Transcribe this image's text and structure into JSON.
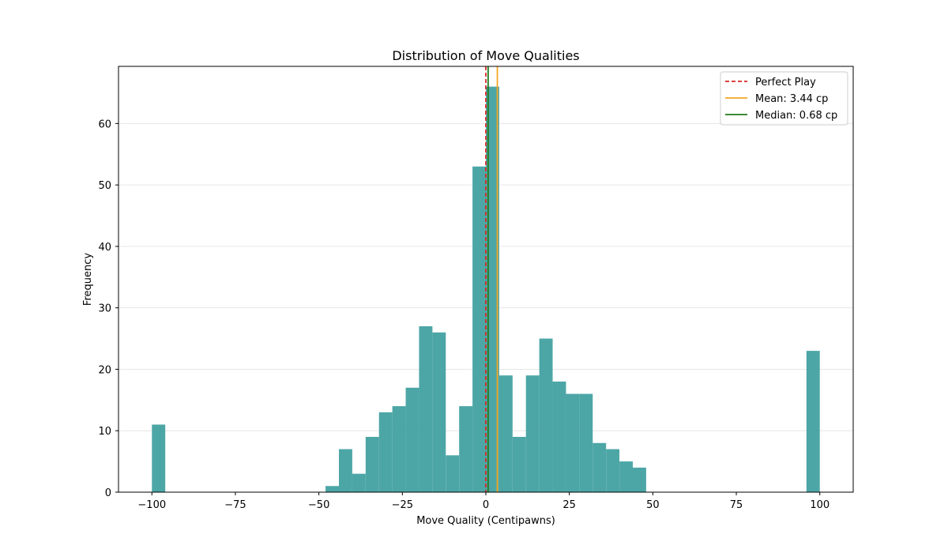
{
  "chart_data": {
    "type": "bar",
    "title": "Distribution of Move Qualities",
    "xlabel": "Move Quality (Centipawns)",
    "ylabel": "Frequency",
    "xlim": [
      -110,
      110
    ],
    "ylim": [
      0,
      69.3
    ],
    "xticks": [
      -100,
      -75,
      -50,
      -25,
      0,
      25,
      50,
      75,
      100
    ],
    "xtick_labels": [
      "−100",
      "−75",
      "−50",
      "−25",
      "0",
      "25",
      "50",
      "75",
      "100"
    ],
    "yticks": [
      0,
      10,
      20,
      30,
      40,
      50,
      60
    ],
    "ytick_labels": [
      "0",
      "10",
      "20",
      "30",
      "40",
      "50",
      "60"
    ],
    "grid": "y-axis, light",
    "bar_color": "#4da6a6",
    "bins": [
      {
        "x0": -100,
        "x1": -96,
        "count": 11
      },
      {
        "x0": -48,
        "x1": -44,
        "count": 1
      },
      {
        "x0": -44,
        "x1": -40,
        "count": 7
      },
      {
        "x0": -40,
        "x1": -36,
        "count": 3
      },
      {
        "x0": -36,
        "x1": -32,
        "count": 9
      },
      {
        "x0": -32,
        "x1": -28,
        "count": 13
      },
      {
        "x0": -28,
        "x1": -24,
        "count": 14
      },
      {
        "x0": -24,
        "x1": -20,
        "count": 17
      },
      {
        "x0": -20,
        "x1": -16,
        "count": 27
      },
      {
        "x0": -16,
        "x1": -12,
        "count": 26
      },
      {
        "x0": -12,
        "x1": -8,
        "count": 6
      },
      {
        "x0": -8,
        "x1": -4,
        "count": 14
      },
      {
        "x0": -4,
        "x1": 0,
        "count": 53
      },
      {
        "x0": 0,
        "x1": 4,
        "count": 66
      },
      {
        "x0": 4,
        "x1": 8,
        "count": 19
      },
      {
        "x0": 8,
        "x1": 12,
        "count": 9
      },
      {
        "x0": 12,
        "x1": 16,
        "count": 19
      },
      {
        "x0": 16,
        "x1": 20,
        "count": 25
      },
      {
        "x0": 20,
        "x1": 24,
        "count": 18
      },
      {
        "x0": 24,
        "x1": 28,
        "count": 16
      },
      {
        "x0": 28,
        "x1": 32,
        "count": 16
      },
      {
        "x0": 32,
        "x1": 36,
        "count": 8
      },
      {
        "x0": 36,
        "x1": 40,
        "count": 7
      },
      {
        "x0": 40,
        "x1": 44,
        "count": 5
      },
      {
        "x0": 44,
        "x1": 48,
        "count": 4
      },
      {
        "x0": 96,
        "x1": 100,
        "count": 23
      }
    ],
    "reference_lines": [
      {
        "name": "Perfect Play",
        "x": 0,
        "color": "#d62728",
        "style": "dashed"
      },
      {
        "name": "Mean: 3.44 cp",
        "x": 3.44,
        "color": "#f5a623",
        "style": "solid"
      },
      {
        "name": "Median: 0.68 cp",
        "x": 0.68,
        "color": "#1f7a1f",
        "style": "solid"
      }
    ],
    "legend_position": "top-right"
  }
}
